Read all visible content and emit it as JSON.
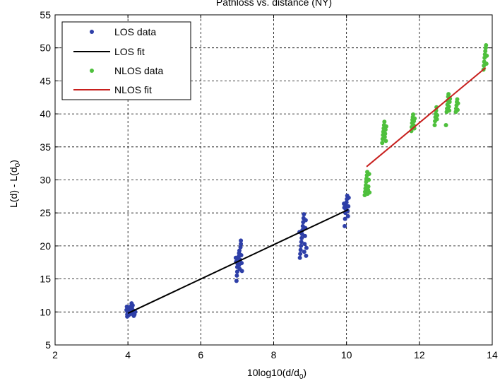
{
  "chart_data": {
    "type": "scatter",
    "title": "Pathloss vs. distance (NY)",
    "xlabel": "10log10(d/d",
    "xlabel_sub": "0",
    "xlabel_close": ")",
    "ylabel": "L(d) - L(d",
    "ylabel_sub": "0",
    "ylabel_close": ")",
    "xlim": [
      2,
      14
    ],
    "ylim": [
      5,
      55
    ],
    "xticks": [
      2,
      4,
      6,
      8,
      10,
      12,
      14
    ],
    "yticks": [
      5,
      10,
      15,
      20,
      25,
      30,
      35,
      40,
      45,
      50,
      55
    ],
    "grid": true,
    "legend_position": "top-left",
    "series": [
      {
        "name": "LOS data",
        "kind": "points",
        "color": "#2e3fa8",
        "points": [
          [
            3.98,
            9.3
          ],
          [
            3.98,
            9.6
          ],
          [
            3.99,
            9.9
          ],
          [
            4.0,
            10.1
          ],
          [
            4.0,
            10.4
          ],
          [
            4.01,
            10.7
          ],
          [
            4.02,
            9.5
          ],
          [
            4.03,
            9.8
          ],
          [
            4.04,
            10.2
          ],
          [
            4.05,
            10.5
          ],
          [
            4.06,
            10.0
          ],
          [
            4.07,
            9.7
          ],
          [
            4.08,
            10.3
          ],
          [
            4.09,
            10.9
          ],
          [
            4.1,
            11.3
          ],
          [
            4.11,
            10.6
          ],
          [
            4.12,
            9.9
          ],
          [
            4.15,
            10.2
          ],
          [
            4.18,
            9.6
          ],
          [
            4.2,
            10.0
          ],
          [
            3.96,
            10.3
          ],
          [
            3.97,
            10.8
          ],
          [
            4.13,
            11.0
          ],
          [
            4.16,
            9.4
          ],
          [
            6.98,
            14.7
          ],
          [
            6.99,
            15.5
          ],
          [
            7.0,
            16.1
          ],
          [
            7.0,
            16.8
          ],
          [
            7.01,
            17.3
          ],
          [
            7.02,
            17.7
          ],
          [
            7.03,
            18.0
          ],
          [
            7.04,
            18.4
          ],
          [
            7.05,
            17.1
          ],
          [
            7.05,
            18.9
          ],
          [
            7.06,
            19.3
          ],
          [
            7.07,
            16.5
          ],
          [
            7.08,
            17.9
          ],
          [
            7.09,
            19.8
          ],
          [
            7.1,
            20.3
          ],
          [
            7.1,
            20.8
          ],
          [
            7.11,
            18.6
          ],
          [
            7.12,
            17.4
          ],
          [
            7.13,
            16.2
          ],
          [
            6.97,
            17.6
          ],
          [
            6.96,
            18.2
          ],
          [
            8.72,
            18.2
          ],
          [
            8.73,
            18.8
          ],
          [
            8.74,
            19.4
          ],
          [
            8.75,
            20.0
          ],
          [
            8.76,
            20.6
          ],
          [
            8.77,
            21.2
          ],
          [
            8.78,
            21.8
          ],
          [
            8.79,
            22.4
          ],
          [
            8.8,
            23.0
          ],
          [
            8.81,
            23.6
          ],
          [
            8.82,
            24.2
          ],
          [
            8.83,
            24.8
          ],
          [
            8.84,
            19.1
          ],
          [
            8.85,
            20.3
          ],
          [
            8.86,
            21.5
          ],
          [
            8.87,
            22.7
          ],
          [
            8.88,
            23.9
          ],
          [
            8.89,
            18.5
          ],
          [
            8.9,
            19.7
          ],
          [
            8.71,
            22.1
          ],
          [
            9.95,
            23.0
          ],
          [
            9.96,
            24.1
          ],
          [
            9.97,
            25.0
          ],
          [
            9.98,
            25.6
          ],
          [
            9.99,
            26.1
          ],
          [
            10.0,
            26.6
          ],
          [
            10.01,
            27.1
          ],
          [
            10.02,
            27.6
          ],
          [
            10.03,
            25.3
          ],
          [
            10.04,
            24.5
          ],
          [
            10.05,
            26.0
          ],
          [
            10.06,
            27.3
          ],
          [
            9.94,
            25.8
          ],
          [
            9.93,
            26.4
          ]
        ]
      },
      {
        "name": "LOS fit",
        "kind": "line",
        "color": "#000000",
        "points": [
          [
            4.0,
            9.8
          ],
          [
            10.05,
            25.5
          ]
        ]
      },
      {
        "name": "NLOS data",
        "kind": "points",
        "color": "#4ec03c",
        "points": [
          [
            10.5,
            27.7
          ],
          [
            10.51,
            28.2
          ],
          [
            10.52,
            28.7
          ],
          [
            10.53,
            29.2
          ],
          [
            10.54,
            29.7
          ],
          [
            10.55,
            30.2
          ],
          [
            10.56,
            30.7
          ],
          [
            10.57,
            31.2
          ],
          [
            10.58,
            27.9
          ],
          [
            10.59,
            28.5
          ],
          [
            10.6,
            29.0
          ],
          [
            10.61,
            30.0
          ],
          [
            10.62,
            30.9
          ],
          [
            10.63,
            28.1
          ],
          [
            10.98,
            35.6
          ],
          [
            10.99,
            36.2
          ],
          [
            11.0,
            36.8
          ],
          [
            11.01,
            37.3
          ],
          [
            11.02,
            37.8
          ],
          [
            11.03,
            38.3
          ],
          [
            11.04,
            38.8
          ],
          [
            11.05,
            36.5
          ],
          [
            11.06,
            37.0
          ],
          [
            11.07,
            37.6
          ],
          [
            11.08,
            35.9
          ],
          [
            11.09,
            38.1
          ],
          [
            11.78,
            37.4
          ],
          [
            11.79,
            38.0
          ],
          [
            11.8,
            38.6
          ],
          [
            11.81,
            39.1
          ],
          [
            11.82,
            39.5
          ],
          [
            11.83,
            39.9
          ],
          [
            11.84,
            38.3
          ],
          [
            11.85,
            38.9
          ],
          [
            11.86,
            37.8
          ],
          [
            11.87,
            39.3
          ],
          [
            12.42,
            38.3
          ],
          [
            12.43,
            38.9
          ],
          [
            12.44,
            39.5
          ],
          [
            12.45,
            40.0
          ],
          [
            12.46,
            40.5
          ],
          [
            12.47,
            41.0
          ],
          [
            12.48,
            39.2
          ],
          [
            12.49,
            39.8
          ],
          [
            12.73,
            38.3
          ],
          [
            12.75,
            40.3
          ],
          [
            12.76,
            40.8
          ],
          [
            12.77,
            41.4
          ],
          [
            12.78,
            42.0
          ],
          [
            12.79,
            42.6
          ],
          [
            12.8,
            43.0
          ],
          [
            12.81,
            41.1
          ],
          [
            12.82,
            40.5
          ],
          [
            12.83,
            41.8
          ],
          [
            12.84,
            42.3
          ],
          [
            13.0,
            40.3
          ],
          [
            13.01,
            40.8
          ],
          [
            13.02,
            41.3
          ],
          [
            13.03,
            41.8
          ],
          [
            13.04,
            42.2
          ],
          [
            13.05,
            40.6
          ],
          [
            13.06,
            41.6
          ],
          [
            13.76,
            46.7
          ],
          [
            13.77,
            47.3
          ],
          [
            13.78,
            47.9
          ],
          [
            13.79,
            48.5
          ],
          [
            13.8,
            49.0
          ],
          [
            13.81,
            49.5
          ],
          [
            13.82,
            50.0
          ],
          [
            13.83,
            50.4
          ],
          [
            13.84,
            47.6
          ],
          [
            13.85,
            48.8
          ]
        ]
      },
      {
        "name": "NLOS fit",
        "kind": "line",
        "color": "#c8201e",
        "points": [
          [
            10.55,
            32.0
          ],
          [
            13.82,
            47.0
          ]
        ]
      }
    ]
  }
}
